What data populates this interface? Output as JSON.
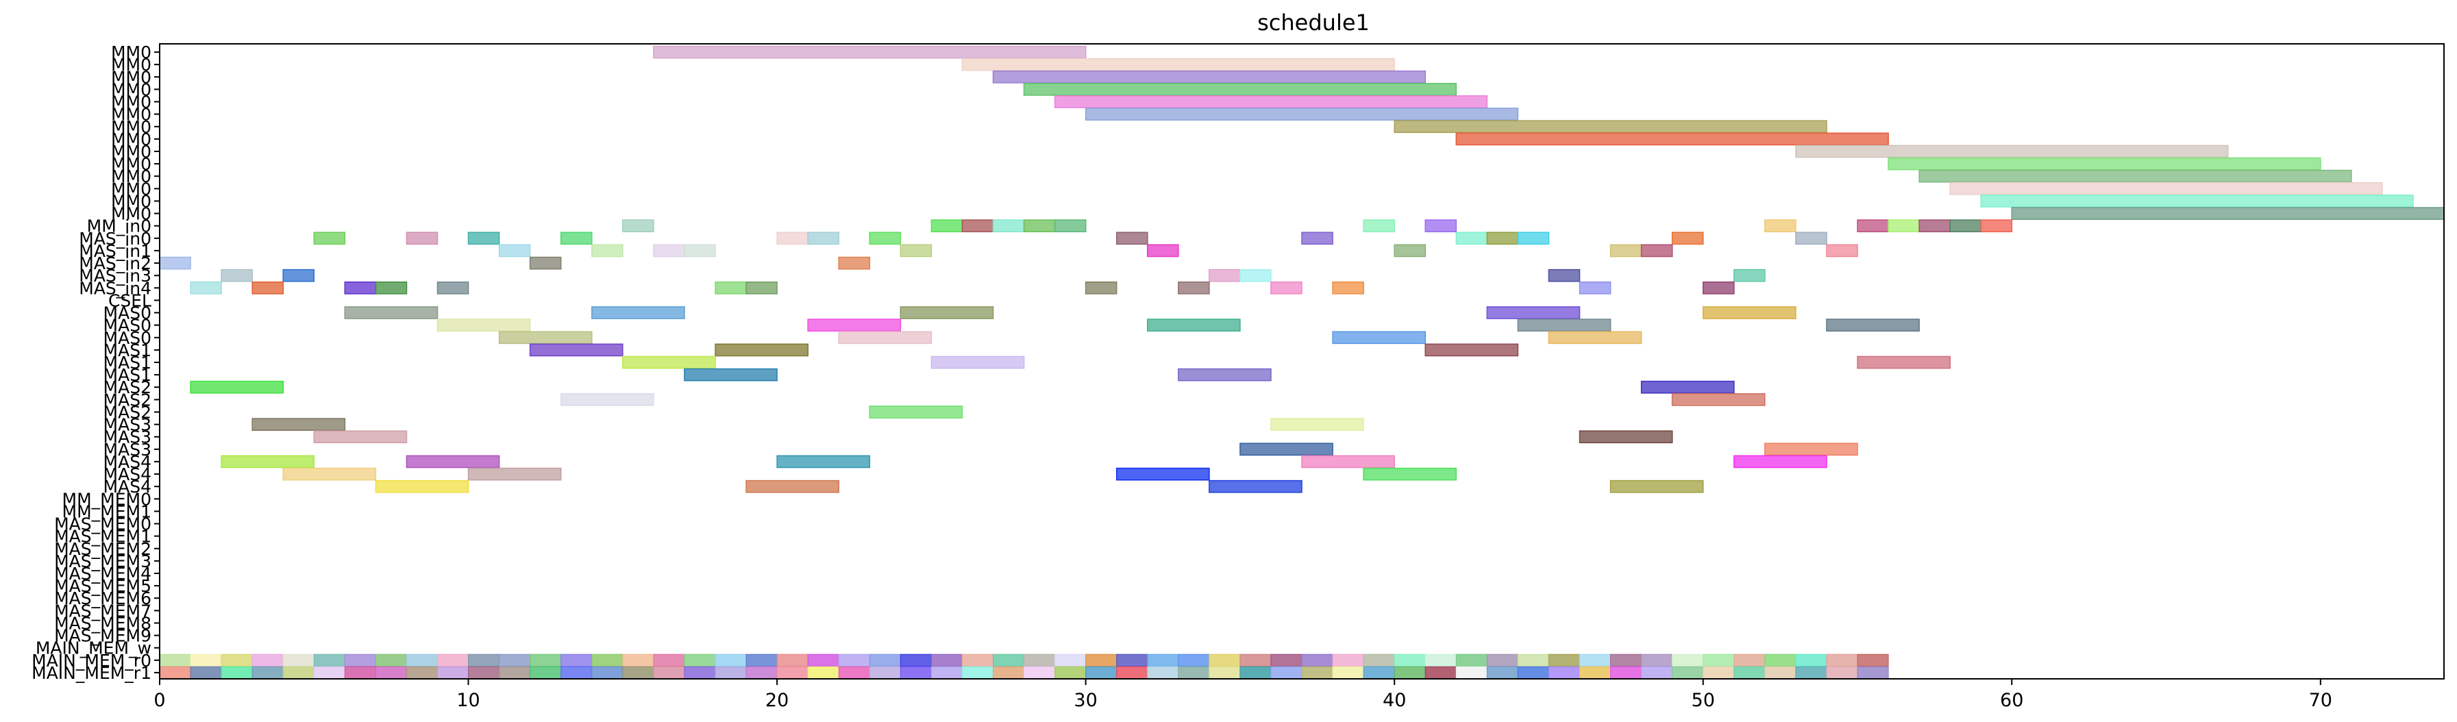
{
  "chart_data": {
    "type": "gantt",
    "title": "schedule1",
    "xlim": [
      0,
      74
    ],
    "xticks": [
      0,
      10,
      20,
      30,
      40,
      50,
      60,
      70
    ],
    "rows": [
      "MM0",
      "MM0",
      "MM0",
      "MM0",
      "MM0",
      "MM0",
      "MM0",
      "MM0",
      "MM0",
      "MM0",
      "MM0",
      "MM0",
      "MM0",
      "MM0",
      "MM_in0",
      "MAS_in0",
      "MAS_in1",
      "MAS_in2",
      "MAS_in3",
      "MAS_in4",
      "CSEL",
      "MAS0",
      "MAS0",
      "MAS0",
      "MAS1",
      "MAS1",
      "MAS1",
      "MAS2",
      "MAS2",
      "MAS2",
      "MAS3",
      "MAS3",
      "MAS3",
      "MAS4",
      "MAS4",
      "MAS4",
      "MM_MEM0",
      "MM_MEM1",
      "MAS_MEM0",
      "MAS_MEM1",
      "MAS_MEM2",
      "MAS_MEM3",
      "MAS_MEM4",
      "MAS_MEM5",
      "MAS_MEM6",
      "MAS_MEM7",
      "MAS_MEM8",
      "MAS_MEM9",
      "MAIN_MEM_w",
      "MAIN_MEM_r0",
      "MAIN_MEM_r1"
    ],
    "bars": [
      [
        0,
        16,
        30,
        "#d4a5cc"
      ],
      [
        1,
        26,
        40,
        "#f0d3c6"
      ],
      [
        2,
        27,
        41,
        "#9a7fd1"
      ],
      [
        3,
        28,
        42,
        "#5fc46a"
      ],
      [
        4,
        29,
        43,
        "#ec7fd9"
      ],
      [
        5,
        30,
        44,
        "#8ba3db"
      ],
      [
        6,
        40,
        54,
        "#a8a257"
      ],
      [
        7,
        42,
        56,
        "#e65a3a"
      ],
      [
        8,
        53,
        67,
        "#cfc4bb"
      ],
      [
        9,
        56,
        70,
        "#7ee07a"
      ],
      [
        10,
        57,
        71,
        "#7fba80"
      ],
      [
        11,
        58,
        72,
        "#eecfcc"
      ],
      [
        12,
        59,
        73,
        "#7ef0cc"
      ],
      [
        13,
        60,
        74,
        "#6f9c88"
      ],
      [
        14,
        15,
        16,
        "#9fd0bc"
      ],
      [
        14,
        25,
        26,
        "#55e055"
      ],
      [
        14,
        26,
        27,
        "#a85555"
      ],
      [
        14,
        27,
        28,
        "#80e8cc"
      ],
      [
        14,
        28,
        29,
        "#6cbf58"
      ],
      [
        14,
        29,
        30,
        "#5cb87a"
      ],
      [
        14,
        39,
        40,
        "#88f0b8"
      ],
      [
        14,
        41,
        42,
        "#9a6af0"
      ],
      [
        14,
        52,
        53,
        "#f0c870"
      ],
      [
        14,
        55,
        56,
        "#c05080"
      ],
      [
        14,
        56,
        57,
        "#a8f070"
      ],
      [
        14,
        57,
        58,
        "#a05070"
      ],
      [
        14,
        58,
        59,
        "#508060"
      ],
      [
        14,
        59,
        60,
        "#f06050"
      ],
      [
        15,
        5,
        6,
        "#6cd058"
      ],
      [
        15,
        8,
        9,
        "#d090b0"
      ],
      [
        15,
        10,
        11,
        "#40b0a8"
      ],
      [
        15,
        13,
        14,
        "#50d870"
      ],
      [
        15,
        20,
        21,
        "#f0d0d0"
      ],
      [
        15,
        21,
        22,
        "#a0d0d8"
      ],
      [
        15,
        23,
        24,
        "#60e060"
      ],
      [
        15,
        31,
        32,
        "#906070"
      ],
      [
        15,
        37,
        38,
        "#8060d0"
      ],
      [
        15,
        42,
        43,
        "#80f0d0"
      ],
      [
        15,
        43,
        44,
        "#90a040"
      ],
      [
        15,
        44,
        45,
        "#40d0e8"
      ],
      [
        15,
        49,
        50,
        "#e87030"
      ],
      [
        15,
        53,
        54,
        "#a0b0c0"
      ],
      [
        16,
        11,
        12,
        "#a0d8e8"
      ],
      [
        16,
        14,
        15,
        "#c0e8a8"
      ],
      [
        16,
        16,
        17,
        "#e0d0e8"
      ],
      [
        16,
        17,
        18,
        "#d0e0d8"
      ],
      [
        16,
        24,
        25,
        "#b8d080"
      ],
      [
        16,
        32,
        33,
        "#e838c8"
      ],
      [
        16,
        40,
        41,
        "#88b078"
      ],
      [
        16,
        47,
        48,
        "#d0c070"
      ],
      [
        16,
        48,
        49,
        "#b05070"
      ],
      [
        16,
        54,
        55,
        "#f08898"
      ],
      [
        17,
        0,
        1,
        "#a0b8e8"
      ],
      [
        17,
        12,
        13,
        "#808070"
      ],
      [
        17,
        22,
        23,
        "#e08050"
      ],
      [
        18,
        2,
        3,
        "#a8c0c8"
      ],
      [
        18,
        4,
        5,
        "#3070d0"
      ],
      [
        18,
        34,
        35,
        "#e0a0c8"
      ],
      [
        18,
        35,
        36,
        "#a0f0f0"
      ],
      [
        18,
        45,
        46,
        "#5050a0"
      ],
      [
        18,
        51,
        52,
        "#60c8a8"
      ],
      [
        19,
        1,
        2,
        "#a0e0e0"
      ],
      [
        19,
        3,
        4,
        "#e06030"
      ],
      [
        19,
        6,
        7,
        "#6030d0"
      ],
      [
        19,
        7,
        8,
        "#409040"
      ],
      [
        19,
        9,
        10,
        "#708890"
      ],
      [
        19,
        18,
        19,
        "#80d870"
      ],
      [
        19,
        19,
        20,
        "#70a060"
      ],
      [
        19,
        30,
        31,
        "#808060"
      ],
      [
        19,
        33,
        34,
        "#907070"
      ],
      [
        19,
        36,
        37,
        "#f088c8"
      ],
      [
        19,
        38,
        39,
        "#f09040"
      ],
      [
        19,
        46,
        47,
        "#9090f0"
      ],
      [
        19,
        50,
        51,
        "#904070"
      ],
      [
        21,
        6,
        9,
        "#8a9a8a"
      ],
      [
        21,
        14,
        17,
        "#5ca0d8"
      ],
      [
        21,
        24,
        27,
        "#8a9a60"
      ],
      [
        21,
        43,
        46,
        "#7050d8"
      ],
      [
        21,
        50,
        53,
        "#d8b040"
      ],
      [
        22,
        9,
        12,
        "#dde6a8"
      ],
      [
        22,
        21,
        24,
        "#f050e0"
      ],
      [
        22,
        32,
        35,
        "#40b090"
      ],
      [
        22,
        44,
        47,
        "#708890"
      ],
      [
        22,
        54,
        57,
        "#607888"
      ],
      [
        23,
        11,
        14,
        "#b8c080"
      ],
      [
        23,
        22,
        25,
        "#e8c0c8"
      ],
      [
        23,
        38,
        41,
        "#5898e8"
      ],
      [
        23,
        45,
        48,
        "#e8b860"
      ],
      [
        24,
        12,
        15,
        "#7040c8"
      ],
      [
        24,
        18,
        21,
        "#807830"
      ],
      [
        24,
        41,
        44,
        "#904850"
      ],
      [
        25,
        15,
        18,
        "#c0e850"
      ],
      [
        25,
        25,
        28,
        "#c8b8f0"
      ],
      [
        25,
        55,
        58,
        "#d07080"
      ],
      [
        26,
        17,
        20,
        "#2880b0"
      ],
      [
        26,
        33,
        36,
        "#7868c8"
      ],
      [
        27,
        1,
        4,
        "#40e040"
      ],
      [
        27,
        48,
        51,
        "#4030c0"
      ],
      [
        28,
        13,
        16,
        "#d8dce8"
      ],
      [
        28,
        49,
        52,
        "#d07060"
      ],
      [
        29,
        23,
        26,
        "#70e070"
      ],
      [
        30,
        3,
        6,
        "#807860"
      ],
      [
        30,
        36,
        39,
        "#e0f0a0"
      ],
      [
        31,
        5,
        8,
        "#d0a0a8"
      ],
      [
        31,
        46,
        49,
        "#704840"
      ],
      [
        32,
        35,
        38,
        "#3860a0"
      ],
      [
        32,
        52,
        55,
        "#f08060"
      ],
      [
        33,
        2,
        5,
        "#a8e840"
      ],
      [
        33,
        8,
        11,
        "#b050c0"
      ],
      [
        33,
        20,
        23,
        "#3098b0"
      ],
      [
        33,
        37,
        40,
        "#f080c0"
      ],
      [
        33,
        51,
        54,
        "#f030f0"
      ],
      [
        34,
        4,
        7,
        "#f0d080"
      ],
      [
        34,
        10,
        13,
        "#c0a0a0"
      ],
      [
        34,
        31,
        34,
        "#1030f0"
      ],
      [
        34,
        39,
        42,
        "#50e060"
      ],
      [
        35,
        7,
        10,
        "#f0e040"
      ],
      [
        35,
        19,
        22,
        "#d07850"
      ],
      [
        35,
        34,
        37,
        "#2040e0"
      ],
      [
        35,
        47,
        50,
        "#a0a040"
      ]
    ],
    "mem_r0_colors": [
      "#b8e098",
      "#f8f0b0",
      "#d8d870",
      "#e8a8e0",
      "#e0e0d0",
      "#70b8b0",
      "#a088d8",
      "#80c070",
      "#98c8e0",
      "#f0a8c8",
      "#7890a8",
      "#8898c8",
      "#70c878",
      "#8878e8",
      "#88c860",
      "#f0b890",
      "#e070a0",
      "#80d080",
      "#90d0f0",
      "#5878d0",
      "#e88888",
      "#d050e0",
      "#b0a0f0",
      "#8098e8",
      "#3838e0",
      "#9060c0",
      "#e8a898",
      "#60c8a0",
      "#b0b0a8",
      "#d8d8f8",
      "#e09040",
      "#5050c0",
      "#60a8e8",
      "#5890f0",
      "#e0d060",
      "#d08080",
      "#a05080",
      "#9070c8",
      "#f0a8d0",
      "#b0b8a0",
      "#80f0c0",
      "#c8f0d8",
      "#70c880",
      "#a090b0",
      "#c8e0a0",
      "#a0a050",
      "#a0d8f0",
      "#a06890",
      "#a890c0",
      "#d0f0c8",
      "#a0e8a0",
      "#e0a890",
      "#80d870",
      "#60e8c8",
      "#e0a098",
      "#c0605c"
    ],
    "mem_r1_colors": [
      "#f08878",
      "#6078a8",
      "#50e8a0",
      "#6898b0",
      "#c0d078",
      "#e0c8f0",
      "#d050a0",
      "#d060c0",
      "#a89078",
      "#c098e0",
      "#a06080",
      "#a09088",
      "#48c070",
      "#5868f0",
      "#6088d0",
      "#909068",
      "#d888a0",
      "#8060d8",
      "#a8a0e0",
      "#c070d0",
      "#f08898",
      "#f0f068",
      "#e858b8",
      "#b8a8e0",
      "#7050f0",
      "#b0a0f0",
      "#88f0e0",
      "#e0a070",
      "#f0c8f0",
      "#a0c858",
      "#4898c8",
      "#e84858",
      "#b0d0e0",
      "#80a8a0",
      "#e0e090",
      "#3098a0",
      "#88a0f0",
      "#b0b068",
      "#f0f0a0",
      "#50a0d0",
      "#60b860",
      "#a03850",
      "#f0f0f0",
      "#6898c8",
      "#4070e0",
      "#a080f8",
      "#e8c050",
      "#e050e0",
      "#b0a0f0",
      "#80c890",
      "#e8d0a8",
      "#60d0a0",
      "#e0c8a8",
      "#50a8b0",
      "#e0a8b0",
      "#9080c8"
    ]
  }
}
